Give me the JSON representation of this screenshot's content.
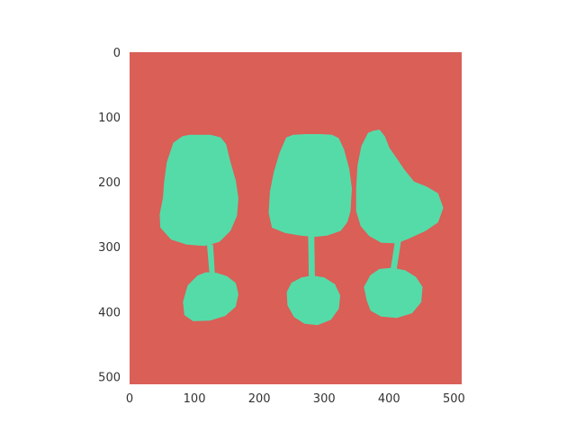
{
  "chart_data": {
    "type": "heatmap",
    "title": "",
    "xlabel": "",
    "ylabel": "",
    "xlim": [
      0,
      512
    ],
    "ylim": [
      512,
      0
    ],
    "grid": false,
    "colors": {
      "background": "#d95f57",
      "foreground": "#55dba8"
    },
    "x_ticks": [
      {
        "value": 0,
        "label": "0"
      },
      {
        "value": 100,
        "label": "100"
      },
      {
        "value": 200,
        "label": "200"
      },
      {
        "value": 300,
        "label": "300"
      },
      {
        "value": 400,
        "label": "400"
      },
      {
        "value": 500,
        "label": "500"
      }
    ],
    "y_ticks": [
      {
        "value": 0,
        "label": "0"
      },
      {
        "value": 100,
        "label": "100"
      },
      {
        "value": 200,
        "label": "200"
      },
      {
        "value": 300,
        "label": "300"
      },
      {
        "value": 400,
        "label": "400"
      },
      {
        "value": 500,
        "label": "500"
      }
    ],
    "regions": [
      {
        "name": "left-glass-bowl",
        "points": [
          [
            82,
            130
          ],
          [
            93,
            128
          ],
          [
            108,
            128
          ],
          [
            125,
            128
          ],
          [
            140,
            132
          ],
          [
            148,
            142
          ],
          [
            155,
            170
          ],
          [
            163,
            198
          ],
          [
            167,
            225
          ],
          [
            165,
            252
          ],
          [
            155,
            275
          ],
          [
            138,
            292
          ],
          [
            115,
            298
          ],
          [
            88,
            296
          ],
          [
            64,
            288
          ],
          [
            48,
            270
          ],
          [
            47,
            250
          ],
          [
            52,
            225
          ],
          [
            54,
            200
          ],
          [
            58,
            170
          ],
          [
            68,
            140
          ]
        ]
      },
      {
        "name": "left-glass-stem",
        "points": [
          [
            120,
            297
          ],
          [
            128,
            297
          ],
          [
            131,
            345
          ],
          [
            124,
            345
          ]
        ]
      },
      {
        "name": "left-glass-base",
        "points": [
          [
            105,
            345
          ],
          [
            118,
            340
          ],
          [
            135,
            341
          ],
          [
            150,
            346
          ],
          [
            163,
            356
          ],
          [
            167,
            373
          ],
          [
            163,
            392
          ],
          [
            147,
            406
          ],
          [
            124,
            413
          ],
          [
            98,
            414
          ],
          [
            85,
            405
          ],
          [
            83,
            385
          ],
          [
            90,
            360
          ]
        ]
      },
      {
        "name": "middle-glass-bowl",
        "points": [
          [
            252,
            128
          ],
          [
            272,
            127
          ],
          [
            295,
            127
          ],
          [
            312,
            128
          ],
          [
            322,
            133
          ],
          [
            330,
            150
          ],
          [
            338,
            180
          ],
          [
            342,
            210
          ],
          [
            340,
            245
          ],
          [
            335,
            262
          ],
          [
            325,
            275
          ],
          [
            305,
            282
          ],
          [
            285,
            284
          ],
          [
            263,
            282
          ],
          [
            240,
            278
          ],
          [
            220,
            270
          ],
          [
            215,
            248
          ],
          [
            217,
            215
          ],
          [
            223,
            185
          ],
          [
            232,
            155
          ],
          [
            242,
            132
          ]
        ]
      },
      {
        "name": "middle-glass-stem",
        "points": [
          [
            276,
            282
          ],
          [
            284,
            282
          ],
          [
            285,
            345
          ],
          [
            277,
            345
          ]
        ]
      },
      {
        "name": "middle-glass-base",
        "points": [
          [
            265,
            348
          ],
          [
            282,
            345
          ],
          [
            300,
            348
          ],
          [
            316,
            358
          ],
          [
            324,
            375
          ],
          [
            322,
            395
          ],
          [
            310,
            412
          ],
          [
            290,
            420
          ],
          [
            270,
            418
          ],
          [
            254,
            408
          ],
          [
            244,
            390
          ],
          [
            243,
            370
          ],
          [
            250,
            356
          ]
        ]
      },
      {
        "name": "right-glass-bowl",
        "points": [
          [
            375,
            122
          ],
          [
            385,
            120
          ],
          [
            393,
            130
          ],
          [
            400,
            148
          ],
          [
            410,
            162
          ],
          [
            422,
            180
          ],
          [
            438,
            200
          ],
          [
            458,
            208
          ],
          [
            475,
            218
          ],
          [
            483,
            240
          ],
          [
            475,
            262
          ],
          [
            456,
            275
          ],
          [
            430,
            287
          ],
          [
            412,
            294
          ],
          [
            388,
            293
          ],
          [
            370,
            283
          ],
          [
            357,
            268
          ],
          [
            350,
            245
          ],
          [
            350,
            210
          ],
          [
            352,
            175
          ],
          [
            358,
            145
          ],
          [
            368,
            125
          ]
        ]
      },
      {
        "name": "right-glass-stem",
        "points": [
          [
            410,
            290
          ],
          [
            418,
            290
          ],
          [
            411,
            335
          ],
          [
            403,
            335
          ]
        ]
      },
      {
        "name": "right-glass-base",
        "points": [
          [
            385,
            335
          ],
          [
            405,
            333
          ],
          [
            425,
            337
          ],
          [
            441,
            347
          ],
          [
            451,
            362
          ],
          [
            449,
            385
          ],
          [
            435,
            402
          ],
          [
            412,
            409
          ],
          [
            388,
            407
          ],
          [
            372,
            398
          ],
          [
            366,
            382
          ],
          [
            362,
            362
          ],
          [
            372,
            344
          ]
        ]
      }
    ]
  }
}
